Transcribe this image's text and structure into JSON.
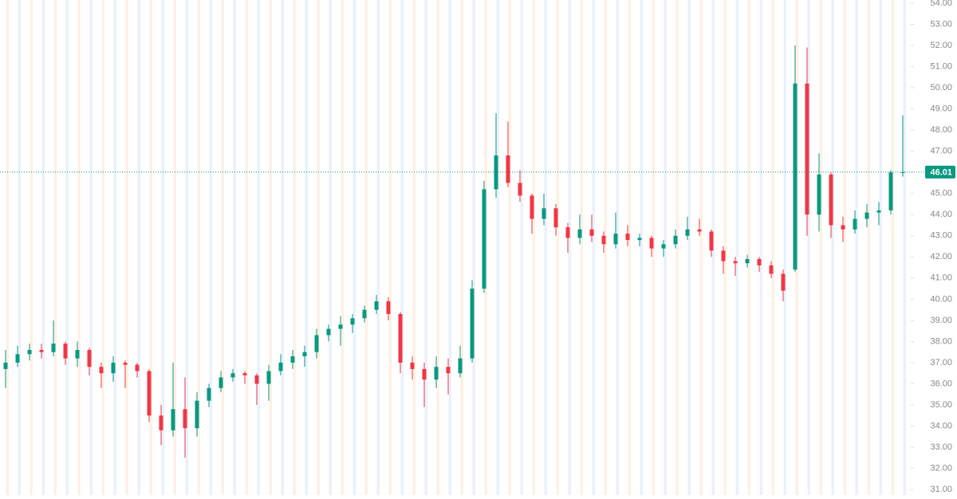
{
  "chart_data": {
    "type": "candlestick",
    "up_color": "#089981",
    "down_color": "#f23645",
    "open": [
      36.7,
      37.0,
      37.4,
      37.6,
      37.5,
      37.9,
      37.2,
      37.6,
      36.8,
      36.5,
      37.0,
      36.9,
      36.6,
      34.5,
      33.8,
      34.8,
      33.9,
      35.2,
      35.8,
      36.3,
      36.5,
      36.4,
      36.0,
      36.6,
      37.0,
      37.3,
      37.5,
      38.3,
      38.6,
      38.8,
      39.1,
      39.5,
      39.9,
      39.3,
      37.0,
      36.7,
      36.2,
      36.8,
      36.5,
      37.2,
      40.5,
      45.2,
      46.8,
      45.5,
      44.9,
      43.8,
      44.3,
      43.4,
      42.9,
      43.3,
      43.0,
      42.6,
      43.1,
      42.8,
      42.9,
      42.4,
      42.6,
      43.0,
      43.3,
      43.2,
      42.3,
      41.8,
      41.7,
      41.9,
      41.6,
      41.2,
      41.4,
      50.2,
      44.0,
      45.9,
      43.5,
      43.3,
      43.8,
      44.1,
      44.2,
      46.0
    ],
    "high": [
      37.6,
      37.8,
      37.9,
      37.9,
      39.0,
      38.0,
      38.0,
      37.7,
      37.0,
      37.3,
      37.1,
      37.0,
      36.7,
      35.0,
      37.0,
      36.3,
      35.6,
      36.0,
      36.6,
      36.7,
      36.6,
      36.5,
      36.9,
      37.4,
      37.6,
      37.8,
      38.6,
      38.8,
      39.2,
      39.3,
      39.7,
      40.2,
      40.1,
      39.4,
      37.3,
      37.0,
      37.3,
      37.2,
      37.8,
      40.9,
      45.6,
      48.8,
      48.4,
      46.1,
      45.0,
      45.0,
      44.5,
      43.6,
      44.0,
      44.0,
      43.2,
      44.1,
      43.5,
      43.1,
      43.0,
      42.8,
      43.3,
      43.9,
      43.8,
      43.3,
      42.5,
      42.0,
      42.1,
      42.0,
      41.8,
      41.4,
      52.0,
      51.9,
      46.9,
      46.0,
      43.9,
      44.2,
      44.5,
      44.6,
      46.1,
      48.7
    ],
    "low": [
      35.8,
      36.8,
      37.1,
      37.2,
      37.3,
      36.9,
      36.8,
      36.4,
      35.8,
      36.1,
      35.8,
      36.3,
      34.2,
      33.1,
      33.5,
      32.5,
      33.5,
      34.9,
      35.6,
      36.1,
      36.0,
      35.0,
      35.2,
      36.4,
      36.7,
      36.8,
      37.2,
      38.0,
      37.8,
      38.4,
      38.9,
      39.3,
      39.0,
      36.5,
      36.2,
      34.9,
      35.8,
      35.5,
      36.3,
      37.0,
      40.3,
      44.8,
      45.3,
      44.6,
      43.1,
      43.5,
      43.0,
      42.2,
      42.6,
      42.7,
      42.2,
      42.4,
      42.5,
      42.5,
      42.0,
      42.0,
      42.4,
      42.8,
      43.0,
      42.0,
      41.2,
      41.1,
      41.5,
      41.3,
      41.0,
      39.9,
      41.3,
      43.0,
      43.2,
      42.9,
      42.7,
      43.1,
      43.4,
      43.5,
      44.0,
      45.8
    ],
    "close": [
      37.0,
      37.4,
      37.6,
      37.5,
      37.9,
      37.2,
      37.6,
      36.8,
      36.5,
      37.0,
      36.9,
      36.6,
      34.5,
      33.8,
      34.8,
      33.9,
      35.2,
      35.8,
      36.3,
      36.5,
      36.4,
      36.0,
      36.6,
      37.0,
      37.3,
      37.5,
      38.3,
      38.6,
      38.8,
      39.1,
      39.5,
      39.9,
      39.3,
      37.0,
      36.7,
      36.2,
      36.8,
      36.5,
      37.2,
      40.5,
      45.2,
      46.8,
      45.5,
      44.9,
      43.8,
      44.3,
      43.4,
      42.9,
      43.3,
      43.0,
      42.6,
      43.1,
      42.8,
      42.9,
      42.4,
      42.6,
      43.0,
      43.3,
      43.2,
      42.3,
      41.8,
      41.7,
      41.9,
      41.6,
      41.2,
      40.4,
      50.2,
      44.0,
      45.9,
      43.5,
      43.3,
      43.8,
      44.1,
      44.2,
      46.0,
      46.01
    ],
    "last_price": 46.01,
    "ylim": [
      30.74,
      54.15
    ],
    "yticks": [
      {
        "value": 31,
        "label": "31.00"
      },
      {
        "value": 32,
        "label": "32.00"
      },
      {
        "value": 33,
        "label": "33.00"
      },
      {
        "value": 34,
        "label": "34.00"
      },
      {
        "value": 35,
        "label": "35.00"
      },
      {
        "value": 36,
        "label": "36.00"
      },
      {
        "value": 37,
        "label": "37.00"
      },
      {
        "value": 38,
        "label": "38.00"
      },
      {
        "value": 39,
        "label": "39.00"
      },
      {
        "value": 40,
        "label": "40.00"
      },
      {
        "value": 41,
        "label": "41.00"
      },
      {
        "value": 42,
        "label": "42.00"
      },
      {
        "value": 43,
        "label": "43.00"
      },
      {
        "value": 44,
        "label": "44.00"
      },
      {
        "value": 45,
        "label": "45.00"
      },
      {
        "value": 46,
        "label": "46.00"
      },
      {
        "value": 47,
        "label": "47.00"
      },
      {
        "value": 48,
        "label": "48.00"
      },
      {
        "value": 49,
        "label": "49.00"
      },
      {
        "value": 50,
        "label": "50.00"
      },
      {
        "value": 51,
        "label": "51.00"
      },
      {
        "value": 52,
        "label": "52.00"
      },
      {
        "value": 53,
        "label": "53.00"
      },
      {
        "value": 54,
        "label": "54.00"
      }
    ]
  }
}
